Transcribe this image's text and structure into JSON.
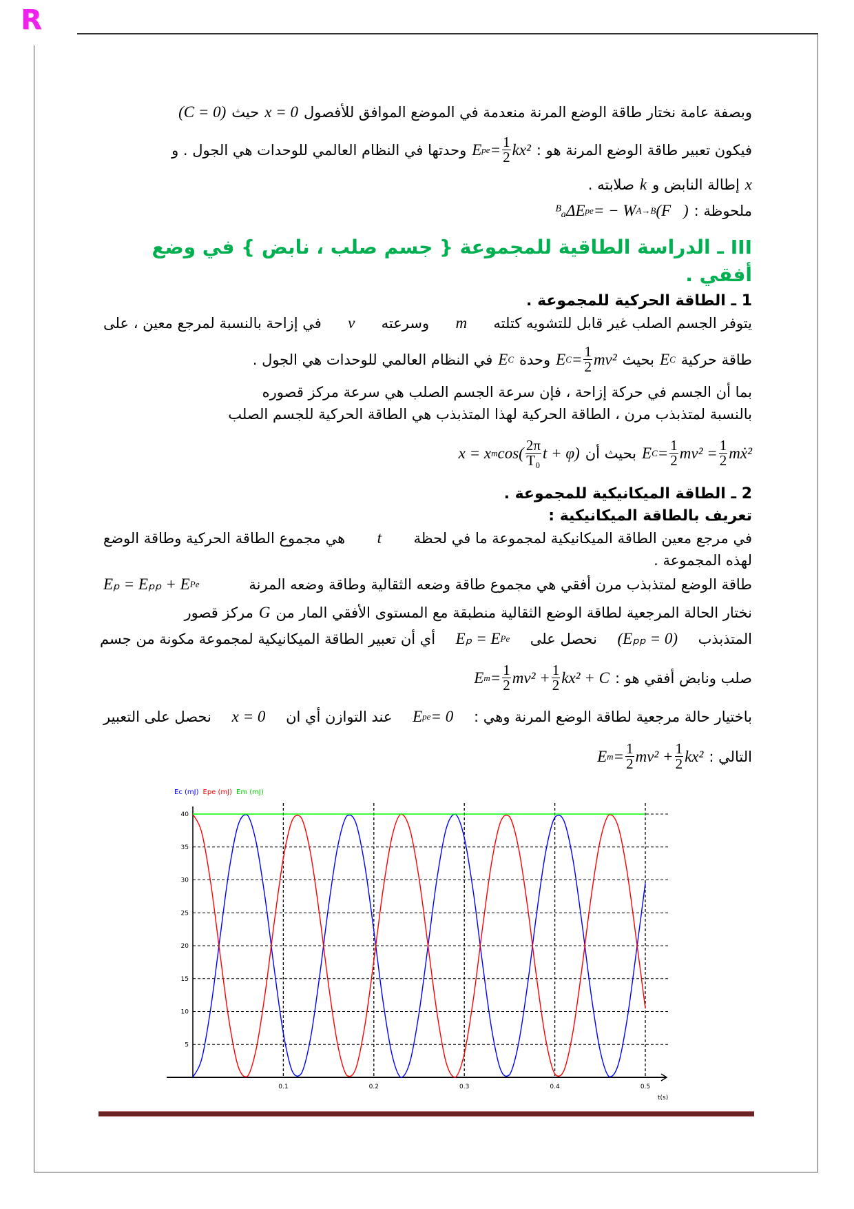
{
  "logo": "R",
  "lines": {
    "l1": {
      "t1": "وبصفة عامة نختار طاقة الوضع المرنة منعدمة في الموضع الموافق للأفصول",
      "m1": "x = 0",
      "t2": "حيث",
      "m2": "(C = 0)"
    },
    "l2": {
      "t1": "فيكون تعبير طاقة الوضع المرنة هو :",
      "m1a": "E",
      "m1s": "pe",
      "m1b": " =",
      "num": "1",
      "den": "2",
      "m1c": "kx²",
      "t2": "وحدتها في النظام العالمي للوحدات هي الجول . و"
    },
    "l3": {
      "m1": "x",
      "t1": "إطالة النابض و",
      "m2": "k",
      "t2": "صلابته ."
    },
    "l4": {
      "t1": "ملحوظة :",
      "m1": "ᴮₐΔE",
      "m1s": "pe",
      "m1b": " = − W",
      "m1w": "A→B",
      "m1c": "(F⃗)"
    },
    "h3a": "III ـ الدراسة الطاقية للمجموعة { جسم صلب ، نابض } في وضع",
    "h3b": "أفقي .",
    "h1": "1 ـ الطاقة الحركية للمجموعة .",
    "l5": {
      "t1": "يتوفر الجسم الصلب غير قابل للتشويه كتلته",
      "m1": "m",
      "t2": "وسرعته",
      "m2": "v",
      "t3": "في إزاحة بالنسبة لمرجع معين ، على"
    },
    "l6": {
      "t1": "طاقة حركية",
      "m1": "E",
      "m1s": "C",
      "t2": "بحيث",
      "m2a": "E",
      "m2s": "C",
      "m2b": " =",
      "num": "1",
      "den": "2",
      "m2c": "mv²",
      "t3": "وحدة",
      "m3": "E",
      "m3s": "C",
      "t4": "في النظام العالمي للوحدات هي الجول ."
    },
    "l7": "بما أن الجسم في حركة إزاحة ، فإن سرعة الجسم الصلب هي سرعة مركز قصوره",
    "l8": "بالنسبة لمتذبذب مرن ، الطاقة الحركية لهذا المتذبذب هي الطاقة الحركية للجسم الصلب",
    "l9": {
      "m1a": "E",
      "m1s": "C",
      "m1b": " =",
      "num": "1",
      "den": "2",
      "m1c": "mv² =",
      "m1d": "mẋ²",
      "t1": "بحيث أن",
      "m2a": "x = x",
      "m2s": "m",
      "m2b": " cos(",
      "num2": "2π",
      "den2": "T₀",
      "m2c": "t + φ)"
    },
    "h2": "2 ـ الطاقة الميكانيكية للمجموعة .",
    "hdef": "تعريف بالطاقة الميكانيكية :",
    "l10": {
      "t1": "في مرجع معين الطاقة الميكانيكية لمجموعة ما في لحظة",
      "m1": "t",
      "t2": "هي مجموع الطاقة الحركية وطاقة الوضع"
    },
    "l11": "لهذه المجموعة .",
    "l12": {
      "t1": "طاقة الوضع لمتذبذب مرن أفقي هي مجموع طاقة وضعه الثقالية وطاقة وضعه المرنة",
      "m1": "Eₚ = Eₚₚ + E",
      "m1s": "Pe"
    },
    "l13": {
      "t1": "نختار الحالة المرجعية لطاقة الوضع الثقالية منطبقة مع المستوى الأفقي المار من",
      "m1": "G",
      "t2": "مركز قصور"
    },
    "l14": {
      "t1": "المتذبذب",
      "m1": "(Eₚₚ = 0)",
      "t2": "نحصل على",
      "m2": "Eₚ = E",
      "m2s": "Pe",
      "t3": "أي أن تعبير الطاقة الميكانيكية لمجموعة مكونة من جسم"
    },
    "l15": {
      "t1": "صلب ونابض أفقي هو :",
      "m1a": "E",
      "m1s": "m",
      "m1b": " =",
      "num": "1",
      "den": "2",
      "m1c": "mv² +",
      "m1d": "kx² + C"
    },
    "l16": {
      "t1": "باختيار حالة مرجعية لطاقة الوضع المرنة وهي :",
      "m1": "E",
      "m1s": "pe",
      "m1b": " = 0",
      "t2": "عند التوازن أي ان",
      "m2": "x = 0",
      "t3": "نحصل على التعبير"
    },
    "l17": {
      "t1": "التالي :",
      "m1a": "E",
      "m1s": "m",
      "m1b": " =",
      "num": "1",
      "den": "2",
      "m1c": "mv² +",
      "m1d": "kx²"
    }
  },
  "chart_data": {
    "type": "line",
    "xlabel": "t(s)",
    "xlim": [
      0,
      0.5
    ],
    "ylim": [
      0,
      40
    ],
    "xticks": [
      "0.1",
      "0.2",
      "0.3",
      "0.4",
      "0.5"
    ],
    "yticks": [
      "5",
      "10",
      "15",
      "20",
      "25",
      "30",
      "35",
      "40"
    ],
    "grid": true,
    "legend_position": "top-left",
    "x": [
      0,
      0.01,
      0.02,
      0.03,
      0.04,
      0.05,
      0.06,
      0.07,
      0.08,
      0.09,
      0.1,
      0.11,
      0.12,
      0.13,
      0.14,
      0.15,
      0.16,
      0.17,
      0.18,
      0.19,
      0.2,
      0.21,
      0.22,
      0.23,
      0.24,
      0.25,
      0.26,
      0.27,
      0.28,
      0.29,
      0.3,
      0.31,
      0.32,
      0.33,
      0.34,
      0.35,
      0.36,
      0.37,
      0.38,
      0.39,
      0.4,
      0.41,
      0.42,
      0.43,
      0.44,
      0.45,
      0.46,
      0.47,
      0.48,
      0.49,
      0.5
    ],
    "series": [
      {
        "name": "Ec (mJ)",
        "color": "#0000ff",
        "values": [
          0,
          2.9,
          10.7,
          21.2,
          31.4,
          38.3,
          39.9,
          35.7,
          27.1,
          16.4,
          6.7,
          0.9,
          0.6,
          5.9,
          15.3,
          26.0,
          35.0,
          39.7,
          38.7,
          32.2,
          22.3,
          11.7,
          3.5,
          0,
          2.4,
          9.8,
          20.1,
          30.4,
          37.8,
          40,
          36.4,
          28.1,
          17.4,
          7.5,
          1.2,
          0.4,
          5.2,
          14.2,
          25.0,
          34.3,
          39.5,
          39.0,
          33.1,
          23.4,
          12.7,
          4.1,
          0.1,
          1.9,
          8.9,
          19.0,
          29.5
        ]
      },
      {
        "name": "Epe (mJ)",
        "color": "#ff0000",
        "values": [
          40,
          37.1,
          29.3,
          18.8,
          8.6,
          1.7,
          0.1,
          4.3,
          12.9,
          23.6,
          33.3,
          39.1,
          39.4,
          34.1,
          24.7,
          14.0,
          5.0,
          0.3,
          1.3,
          7.8,
          17.7,
          28.3,
          36.5,
          40.0,
          37.6,
          30.2,
          19.9,
          9.6,
          2.2,
          0,
          3.6,
          11.9,
          22.6,
          32.5,
          38.8,
          39.6,
          34.8,
          25.8,
          15.0,
          5.7,
          0.5,
          1.0,
          6.9,
          16.6,
          27.3,
          35.9,
          39.9,
          38.1,
          31.1,
          21.0,
          10.5
        ]
      },
      {
        "name": "Em (mJ)",
        "color": "#00ff00",
        "values": [
          40,
          40,
          40,
          40,
          40,
          40,
          40,
          40,
          40,
          40,
          40,
          40,
          40,
          40,
          40,
          40,
          40,
          40,
          40,
          40,
          40,
          40,
          40,
          40,
          40,
          40,
          40,
          40,
          40,
          40,
          40,
          40,
          40,
          40,
          40,
          40,
          40,
          40,
          40,
          40,
          40,
          40,
          40,
          40,
          40,
          40,
          40,
          40,
          40,
          40,
          40
        ]
      }
    ]
  }
}
